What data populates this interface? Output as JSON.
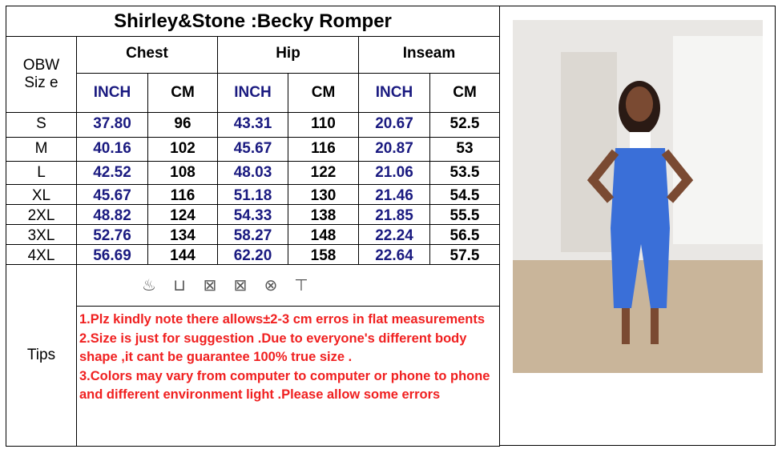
{
  "title": "Shirley&Stone :Becky Romper",
  "size_header": "OBW Siz e",
  "groups": [
    "Chest",
    "Hip",
    "Inseam"
  ],
  "units": [
    "INCH",
    "CM",
    "INCH",
    "CM",
    "INCH",
    "CM"
  ],
  "rows": [
    [
      "S",
      "37.80",
      "96",
      "43.31",
      "110",
      "20.67",
      "52.5"
    ],
    [
      "M",
      "40.16",
      "102",
      "45.67",
      "116",
      "20.87",
      "53"
    ],
    [
      "L",
      "42.52",
      "108",
      "48.03",
      "122",
      "21.06",
      "53.5"
    ],
    [
      "XL",
      "45.67",
      "116",
      "51.18",
      "130",
      "21.46",
      "54.5"
    ],
    [
      "2XL",
      "48.82",
      "124",
      "54.33",
      "138",
      "21.85",
      "55.5"
    ],
    [
      "3XL",
      "52.76",
      "134",
      "58.27",
      "148",
      "22.24",
      "56.5"
    ],
    [
      "4XL",
      "56.69",
      "144",
      "62.20",
      "158",
      "22.64",
      "57.5"
    ]
  ],
  "care_icons": [
    "hand-wash-30-icon",
    "wash-basin-icon",
    "no-tumble-dry-icon",
    "no-dry-clean-icon",
    "no-bleach-icon",
    "hang-dry-icon"
  ],
  "tips_label": "Tips",
  "tips": "1.Plz kindly note there allows±2-3 cm erros in flat measurements\n2.Size is just for suggestion .Due to everyone's different body shape ,it cant be guarantee 100% true size .\n3.Colors may  vary from computer to computer or phone to phone and different environment light .Please allow some errors",
  "colors": {
    "inch": "#1a1a80",
    "tips": "#f02020",
    "romper": "#3a6fd8"
  }
}
